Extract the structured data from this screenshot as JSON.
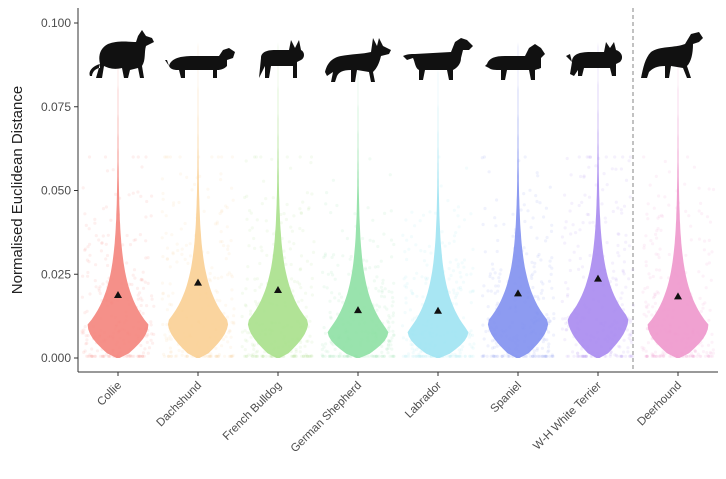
{
  "chart_data": {
    "type": "violin",
    "title": "",
    "xlabel": "",
    "ylabel": "Normalised Euclidean Distance",
    "ylim": [
      0.0,
      0.1
    ],
    "yticks": [
      "0.000",
      "0.025",
      "0.050",
      "0.075",
      "0.100"
    ],
    "categories": [
      "Collie",
      "Dachshund",
      "French Bulldog",
      "German Shepherd",
      "Labrador",
      "Spaniel",
      "W-H White Terrier",
      "Deerhound"
    ],
    "colors": [
      "#f4847c",
      "#f9cf93",
      "#a9e08b",
      "#8ee0a4",
      "#9fe3f2",
      "#8190f0",
      "#a98af0",
      "#ee97cc"
    ],
    "means": [
      0.0188,
      0.0225,
      0.0203,
      0.0143,
      0.0141,
      0.0193,
      0.0237,
      0.0184
    ],
    "modes": [
      0.01,
      0.011,
      0.011,
      0.008,
      0.008,
      0.011,
      0.012,
      0.01
    ],
    "maxima": [
      0.1,
      0.1,
      0.1,
      0.09,
      0.09,
      0.1,
      0.1,
      0.1
    ],
    "separator_after": "W-H White Terrier",
    "icons": [
      "collie-silhouette-icon",
      "dachshund-silhouette-icon",
      "french-bulldog-silhouette-icon",
      "german-shepherd-silhouette-icon",
      "labrador-silhouette-icon",
      "spaniel-silhouette-icon",
      "westie-silhouette-icon",
      "deerhound-silhouette-icon"
    ]
  }
}
